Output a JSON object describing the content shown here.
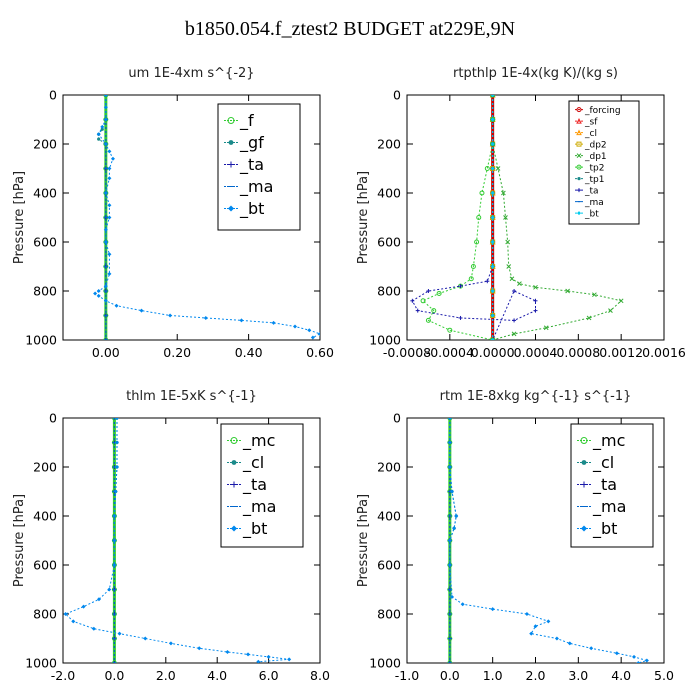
{
  "page_title": "b1850.054.f_ztest2  BUDGET at229E,9N",
  "chart_data": [
    {
      "type": "line",
      "title": "um   1E-4xm s^{-2}",
      "ylabel": "Pressure [hPa]",
      "xlim": [
        -0.12,
        0.6
      ],
      "ylim": [
        1000,
        0
      ],
      "xticks": [
        0.0,
        0.2,
        0.4,
        0.6
      ],
      "xtick_labels": [
        "0.00",
        "0.20",
        "0.40",
        "0.60"
      ],
      "yticks": [
        0,
        200,
        400,
        600,
        800,
        1000
      ],
      "ytick_labels": [
        "0",
        "200",
        "400",
        "600",
        "800",
        "1000"
      ],
      "grid": false,
      "legend_position": "top-right",
      "series": [
        {
          "name": "_f",
          "color": "#33cc33",
          "marker": "circle",
          "x": [
            0.0,
            0.0,
            0.0,
            0.0,
            0.0,
            0.0,
            0.0,
            0.0,
            0.0,
            0.0,
            0.0
          ],
          "y": [
            0,
            100,
            200,
            300,
            400,
            500,
            600,
            700,
            800,
            900,
            1000
          ]
        },
        {
          "name": "_gf",
          "color": "#1a8a8a",
          "marker": "dot",
          "x": [
            0.0,
            0.0,
            -0.01,
            -0.02,
            -0.02,
            0.0,
            0.0,
            0.0,
            0.0,
            0.0,
            0.0,
            0.0,
            0.0,
            0.0
          ],
          "y": [
            0,
            100,
            140,
            160,
            180,
            200,
            300,
            400,
            500,
            600,
            700,
            800,
            900,
            1000
          ]
        },
        {
          "name": "_ta",
          "color": "#1a1aaa",
          "marker": "plus",
          "x": [
            0.0,
            0.0,
            0.0,
            0.0,
            0.0,
            0.0,
            0.0,
            0.0,
            0.0,
            0.0,
            0.0
          ],
          "y": [
            0,
            100,
            200,
            300,
            400,
            500,
            600,
            700,
            800,
            900,
            1000
          ]
        },
        {
          "name": "_ma",
          "color": "#0066cc",
          "marker": "dash",
          "x": [
            0.0,
            0.0,
            0.0,
            0.0,
            0.0,
            0.0,
            0.0,
            0.0,
            0.0,
            0.0,
            0.0
          ],
          "y": [
            0,
            100,
            200,
            300,
            400,
            500,
            600,
            700,
            800,
            900,
            1000
          ]
        },
        {
          "name": "_bt",
          "color": "#0088ee",
          "marker": "diamond",
          "x": [
            0.0,
            0.0,
            0.0,
            -0.01,
            -0.02,
            0.0,
            0.01,
            0.02,
            0.01,
            0.01,
            0.0,
            0.01,
            0.01,
            0.0,
            0.0,
            0.01,
            0.01,
            0.0,
            -0.02,
            -0.03,
            -0.02,
            0.0,
            0.03,
            0.1,
            0.18,
            0.28,
            0.38,
            0.47,
            0.53,
            0.57,
            0.6,
            0.58
          ],
          "y": [
            0,
            50,
            100,
            130,
            160,
            200,
            230,
            260,
            300,
            340,
            400,
            450,
            500,
            550,
            600,
            650,
            730,
            780,
            800,
            810,
            820,
            840,
            860,
            880,
            900,
            910,
            920,
            930,
            945,
            960,
            975,
            990
          ]
        }
      ]
    },
    {
      "type": "line",
      "title": "rtpthlp   1E-4x(kg K)/(kg s)",
      "ylabel": "Pressure [hPa]",
      "xlim": [
        -0.0008,
        0.0016
      ],
      "ylim": [
        1000,
        0
      ],
      "xticks": [
        -0.0008,
        -0.0004,
        0.0,
        0.0004,
        0.0008,
        0.0012,
        0.0016
      ],
      "xtick_labels": [
        "-0.0008",
        "-0.0004",
        "0.0000",
        "0.0004",
        "0.0008",
        "0.0012",
        "0.0016"
      ],
      "yticks": [
        0,
        200,
        400,
        600,
        800,
        1000
      ],
      "ytick_labels": [
        "0",
        "200",
        "400",
        "600",
        "800",
        "1000"
      ],
      "grid": false,
      "legend_position": "top-right",
      "series": [
        {
          "name": "_forcing",
          "color": "#cc0000",
          "marker": "circle",
          "x": [
            0,
            0,
            0,
            0,
            0,
            0,
            0,
            0,
            0,
            0,
            0
          ],
          "y": [
            0,
            100,
            200,
            300,
            400,
            500,
            600,
            700,
            800,
            900,
            1000
          ]
        },
        {
          "name": "_sf",
          "color": "#ee2222",
          "marker": "triangle",
          "x": [
            0,
            0,
            0,
            0,
            0,
            0,
            0,
            0,
            0,
            0,
            0
          ],
          "y": [
            0,
            100,
            200,
            300,
            400,
            500,
            600,
            700,
            800,
            900,
            1000
          ]
        },
        {
          "name": "_cl",
          "color": "#ff9900",
          "marker": "triangle",
          "x": [
            0,
            0,
            0,
            0,
            0,
            0,
            0,
            0,
            0,
            0,
            0
          ],
          "y": [
            0,
            100,
            200,
            300,
            400,
            500,
            600,
            700,
            800,
            900,
            1000
          ]
        },
        {
          "name": "_dp2",
          "color": "#ccaa00",
          "marker": "square",
          "x": [
            0,
            0,
            0,
            0,
            0,
            0,
            0,
            0,
            0,
            0,
            0
          ],
          "y": [
            0,
            100,
            200,
            300,
            400,
            500,
            600,
            700,
            800,
            900,
            1000
          ]
        },
        {
          "name": "_dp1",
          "color": "#33aa33",
          "marker": "x",
          "x": [
            0,
            0,
            0,
            5e-05,
            0.0001,
            0.00012,
            0.00014,
            0.00015,
            0.00018,
            0.00025,
            0.0004,
            0.0007,
            0.00095,
            0.0012,
            0.0011,
            0.0009,
            0.0005,
            0.0002,
            0.0
          ],
          "y": [
            0,
            100,
            200,
            300,
            400,
            500,
            600,
            700,
            750,
            770,
            785,
            800,
            815,
            840,
            880,
            910,
            950,
            975,
            1000
          ]
        },
        {
          "name": "_tp2",
          "color": "#33cc33",
          "marker": "circle",
          "x": [
            0,
            0,
            0,
            -5e-05,
            -0.0001,
            -0.00013,
            -0.00015,
            -0.00018,
            -0.0002,
            -0.0003,
            -0.0005,
            -0.00065,
            -0.00055,
            -0.0006,
            -0.0004,
            0.0
          ],
          "y": [
            0,
            100,
            200,
            300,
            400,
            500,
            600,
            700,
            750,
            780,
            810,
            840,
            880,
            920,
            960,
            1000
          ]
        },
        {
          "name": "_tp1",
          "color": "#1a8a8a",
          "marker": "dot",
          "x": [
            0,
            0,
            0,
            0,
            0,
            0,
            0,
            0,
            0,
            0,
            0
          ],
          "y": [
            0,
            100,
            200,
            300,
            400,
            500,
            600,
            700,
            800,
            900,
            1000
          ]
        },
        {
          "name": "_ta",
          "color": "#1a1aaa",
          "marker": "plus",
          "x": [
            0,
            0,
            0,
            0,
            0,
            0,
            0,
            -5e-05,
            -0.0003,
            -0.0006,
            -0.00075,
            -0.0007,
            -0.0003,
            0.0002,
            0.0004,
            0.0004,
            0.0002,
            0.0
          ],
          "y": [
            0,
            100,
            200,
            300,
            400,
            500,
            700,
            760,
            780,
            800,
            840,
            880,
            910,
            920,
            880,
            840,
            800,
            1000
          ]
        },
        {
          "name": "_ma",
          "color": "#0066cc",
          "marker": "dash",
          "x": [
            0,
            0,
            0,
            0,
            0,
            0,
            0,
            0,
            0,
            0,
            0
          ],
          "y": [
            0,
            100,
            200,
            300,
            400,
            500,
            600,
            700,
            800,
            900,
            1000
          ]
        },
        {
          "name": "_bt",
          "color": "#00ccee",
          "marker": "diamond",
          "x": [
            0,
            0,
            0,
            0,
            0,
            0,
            0,
            0,
            0,
            0,
            0
          ],
          "y": [
            0,
            100,
            200,
            300,
            400,
            500,
            600,
            700,
            800,
            900,
            1000
          ]
        }
      ]
    },
    {
      "type": "line",
      "title": "thlm   1E-5xK s^{-1}",
      "ylabel": "Pressure [hPa]",
      "xlim": [
        -2.0,
        8.0
      ],
      "ylim": [
        1000,
        0
      ],
      "xticks": [
        -2,
        0,
        2,
        4,
        6,
        8
      ],
      "xtick_labels": [
        "-2.0",
        "0.0",
        "2.0",
        "4.0",
        "6.0",
        "8.0"
      ],
      "yticks": [
        0,
        200,
        400,
        600,
        800,
        1000
      ],
      "ytick_labels": [
        "0",
        "200",
        "400",
        "600",
        "800",
        "1000"
      ],
      "grid": false,
      "legend_position": "top-right",
      "series": [
        {
          "name": "_mc",
          "color": "#33cc33",
          "marker": "circle",
          "x": [
            0,
            0,
            0,
            0,
            0,
            0,
            0,
            0,
            0,
            0,
            0
          ],
          "y": [
            0,
            100,
            200,
            300,
            400,
            500,
            600,
            700,
            800,
            900,
            1000
          ]
        },
        {
          "name": "_cl",
          "color": "#1a8a8a",
          "marker": "dot",
          "x": [
            0.1,
            0.1,
            0.1,
            0.05,
            0.0,
            0.0,
            0.0,
            0.0,
            0.0,
            0.0,
            0.0
          ],
          "y": [
            0,
            100,
            200,
            300,
            400,
            500,
            600,
            700,
            800,
            900,
            1000
          ]
        },
        {
          "name": "_ta",
          "color": "#1a1aaa",
          "marker": "plus",
          "x": [
            0,
            0,
            0,
            0,
            0,
            0,
            0,
            0,
            0,
            0,
            0
          ],
          "y": [
            0,
            100,
            200,
            300,
            400,
            500,
            600,
            700,
            800,
            900,
            1000
          ]
        },
        {
          "name": "_ma",
          "color": "#0066cc",
          "marker": "dash",
          "x": [
            0,
            0,
            0,
            0,
            0,
            0,
            0,
            0,
            0,
            0,
            0
          ],
          "y": [
            0,
            100,
            200,
            300,
            400,
            500,
            600,
            700,
            800,
            900,
            1000
          ]
        },
        {
          "name": "_bt",
          "color": "#0088ee",
          "marker": "diamond",
          "x": [
            0.1,
            0.1,
            0.1,
            0.05,
            0.0,
            0.0,
            0.0,
            -0.2,
            -0.6,
            -1.2,
            -1.9,
            -1.6,
            -0.8,
            0.2,
            1.2,
            2.2,
            3.3,
            4.4,
            5.2,
            6.0,
            6.8,
            5.6
          ],
          "y": [
            0,
            100,
            200,
            300,
            400,
            500,
            600,
            700,
            740,
            770,
            800,
            830,
            860,
            880,
            900,
            920,
            940,
            955,
            965,
            975,
            985,
            995
          ]
        }
      ]
    },
    {
      "type": "line",
      "title": "rtm   1E-8xkg kg^{-1} s^{-1}",
      "ylabel": "Pressure [hPa]",
      "xlim": [
        -1.0,
        5.0
      ],
      "ylim": [
        1000,
        0
      ],
      "xticks": [
        -1,
        0,
        1,
        2,
        3,
        4,
        5
      ],
      "xtick_labels": [
        "-1.0",
        "0.0",
        "1.0",
        "2.0",
        "3.0",
        "4.0",
        "5.0"
      ],
      "yticks": [
        0,
        200,
        400,
        600,
        800,
        1000
      ],
      "ytick_labels": [
        "0",
        "200",
        "400",
        "600",
        "800",
        "1000"
      ],
      "grid": false,
      "legend_position": "top-right",
      "series": [
        {
          "name": "_mc",
          "color": "#33cc33",
          "marker": "circle",
          "x": [
            0,
            0,
            0,
            0,
            0,
            0,
            0,
            0,
            0,
            0,
            0
          ],
          "y": [
            0,
            100,
            200,
            300,
            400,
            500,
            600,
            700,
            800,
            900,
            1000
          ]
        },
        {
          "name": "_cl",
          "color": "#1a8a8a",
          "marker": "dot",
          "x": [
            0.0,
            0.0,
            0.0,
            0.05,
            0.15,
            0.1,
            0.0,
            0.0,
            0.0,
            0.0
          ],
          "y": [
            0,
            100,
            200,
            300,
            400,
            450,
            500,
            600,
            700,
            1000
          ]
        },
        {
          "name": "_ta",
          "color": "#1a1aaa",
          "marker": "plus",
          "x": [
            0,
            0,
            0,
            0,
            0,
            0,
            0,
            0,
            0,
            0,
            0
          ],
          "y": [
            0,
            100,
            200,
            300,
            400,
            500,
            600,
            700,
            800,
            900,
            1000
          ]
        },
        {
          "name": "_ma",
          "color": "#0066cc",
          "marker": "dash",
          "x": [
            0,
            0,
            0,
            0,
            0,
            0,
            0,
            0,
            0,
            0,
            0
          ],
          "y": [
            0,
            100,
            200,
            300,
            400,
            500,
            600,
            700,
            800,
            900,
            1000
          ]
        },
        {
          "name": "_bt",
          "color": "#0088ee",
          "marker": "diamond",
          "x": [
            0.0,
            0.0,
            0.0,
            0.05,
            0.15,
            0.1,
            0.0,
            0.0,
            0.05,
            0.3,
            1.0,
            1.8,
            2.3,
            2.0,
            1.9,
            2.5,
            2.8,
            3.3,
            3.9,
            4.3,
            4.6,
            4.4
          ],
          "y": [
            0,
            100,
            200,
            300,
            400,
            450,
            500,
            600,
            730,
            760,
            780,
            800,
            830,
            850,
            880,
            900,
            920,
            940,
            960,
            975,
            990,
            1000
          ]
        }
      ]
    }
  ]
}
